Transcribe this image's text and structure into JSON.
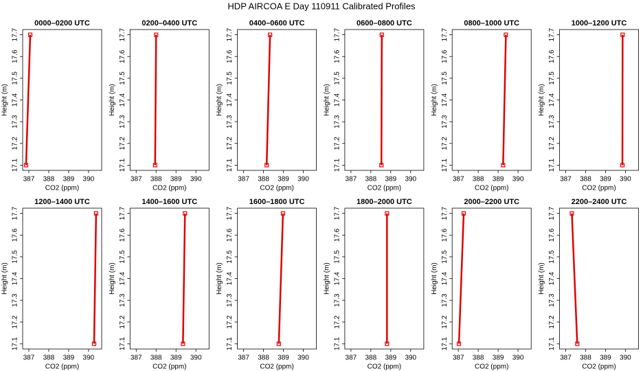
{
  "title": "HDP AIRCOA E  Day 110911  Calibrated Profiles",
  "chart_data": [
    {
      "type": "line",
      "title": "0000–0200 UTC",
      "x_label": "CO2 (ppm)",
      "y_label": "Height (m)",
      "x": [
        386.86,
        387.07
      ],
      "values": [
        17.1,
        17.7
      ],
      "color": "#e00000",
      "xlim": [
        386.69,
        390.66
      ],
      "ylim": [
        17.076,
        17.724
      ],
      "xticks": [
        387,
        388,
        389,
        390
      ],
      "yticks": [
        17.1,
        17.2,
        17.3,
        17.4,
        17.5,
        17.6,
        17.7
      ]
    },
    {
      "type": "line",
      "title": "0200–0400 UTC",
      "x_label": "CO2 (ppm)",
      "y_label": "Height (m)",
      "x": [
        387.95,
        388.0
      ],
      "values": [
        17.1,
        17.7
      ],
      "color": "#e00000",
      "xlim": [
        386.69,
        390.66
      ],
      "ylim": [
        17.076,
        17.724
      ],
      "xticks": [
        387,
        388,
        389,
        390
      ],
      "yticks": [
        17.1,
        17.2,
        17.3,
        17.4,
        17.5,
        17.6,
        17.7
      ]
    },
    {
      "type": "line",
      "title": "0400–0600 UTC",
      "x_label": "CO2 (ppm)",
      "y_label": "Height (m)",
      "x": [
        388.16,
        388.33
      ],
      "values": [
        17.1,
        17.7
      ],
      "color": "#e00000",
      "xlim": [
        386.69,
        390.66
      ],
      "ylim": [
        17.076,
        17.724
      ],
      "xticks": [
        387,
        388,
        389,
        390
      ],
      "yticks": [
        17.1,
        17.2,
        17.3,
        17.4,
        17.5,
        17.6,
        17.7
      ]
    },
    {
      "type": "line",
      "title": "0600–0800 UTC",
      "x_label": "CO2 (ppm)",
      "y_label": "Height (m)",
      "x": [
        388.53,
        388.55
      ],
      "values": [
        17.1,
        17.7
      ],
      "color": "#e00000",
      "xlim": [
        386.69,
        390.66
      ],
      "ylim": [
        17.076,
        17.724
      ],
      "xticks": [
        387,
        388,
        389,
        390
      ],
      "yticks": [
        17.1,
        17.2,
        17.3,
        17.4,
        17.5,
        17.6,
        17.7
      ]
    },
    {
      "type": "line",
      "title": "0800–1000 UTC",
      "x_label": "CO2 (ppm)",
      "y_label": "Height (m)",
      "x": [
        389.25,
        389.39
      ],
      "values": [
        17.1,
        17.7
      ],
      "color": "#e00000",
      "xlim": [
        386.69,
        390.66
      ],
      "ylim": [
        17.076,
        17.724
      ],
      "xticks": [
        387,
        388,
        389,
        390
      ],
      "yticks": [
        17.1,
        17.2,
        17.3,
        17.4,
        17.5,
        17.6,
        17.7
      ]
    },
    {
      "type": "line",
      "title": "1000–1200 UTC",
      "x_label": "CO2 (ppm)",
      "y_label": "Height (m)",
      "x": [
        389.85,
        389.86
      ],
      "values": [
        17.1,
        17.7
      ],
      "color": "#e00000",
      "xlim": [
        386.69,
        390.66
      ],
      "ylim": [
        17.076,
        17.724
      ],
      "xticks": [
        387,
        388,
        389,
        390
      ],
      "yticks": [
        17.1,
        17.2,
        17.3,
        17.4,
        17.5,
        17.6,
        17.7
      ]
    },
    {
      "type": "line",
      "title": "1200–1400 UTC",
      "x_label": "CO2 (ppm)",
      "y_label": "Height (m)",
      "x": [
        390.28,
        390.38
      ],
      "values": [
        17.1,
        17.7
      ],
      "color": "#e00000",
      "xlim": [
        386.69,
        390.66
      ],
      "ylim": [
        17.076,
        17.724
      ],
      "xticks": [
        387,
        388,
        389,
        390
      ],
      "yticks": [
        17.1,
        17.2,
        17.3,
        17.4,
        17.5,
        17.6,
        17.7
      ]
    },
    {
      "type": "line",
      "title": "1400–1600 UTC",
      "x_label": "CO2 (ppm)",
      "y_label": "Height (m)",
      "x": [
        389.35,
        389.45
      ],
      "values": [
        17.1,
        17.7
      ],
      "color": "#e00000",
      "xlim": [
        386.69,
        390.66
      ],
      "ylim": [
        17.076,
        17.724
      ],
      "xticks": [
        387,
        388,
        389,
        390
      ],
      "yticks": [
        17.1,
        17.2,
        17.3,
        17.4,
        17.5,
        17.6,
        17.7
      ]
    },
    {
      "type": "line",
      "title": "1600–1800 UTC",
      "x_label": "CO2 (ppm)",
      "y_label": "Height (m)",
      "x": [
        388.77,
        388.98
      ],
      "values": [
        17.1,
        17.7
      ],
      "color": "#e00000",
      "xlim": [
        386.69,
        390.66
      ],
      "ylim": [
        17.076,
        17.724
      ],
      "xticks": [
        387,
        388,
        389,
        390
      ],
      "yticks": [
        17.1,
        17.2,
        17.3,
        17.4,
        17.5,
        17.6,
        17.7
      ]
    },
    {
      "type": "line",
      "title": "1800–2000 UTC",
      "x_label": "CO2 (ppm)",
      "y_label": "Height (m)",
      "x": [
        388.81,
        388.81
      ],
      "values": [
        17.1,
        17.7
      ],
      "color": "#e00000",
      "xlim": [
        386.69,
        390.66
      ],
      "ylim": [
        17.076,
        17.724
      ],
      "xticks": [
        387,
        388,
        389,
        390
      ],
      "yticks": [
        17.1,
        17.2,
        17.3,
        17.4,
        17.5,
        17.6,
        17.7
      ]
    },
    {
      "type": "line",
      "title": "2000–2200 UTC",
      "x_label": "CO2 (ppm)",
      "y_label": "Height (m)",
      "x": [
        387.03,
        387.27
      ],
      "values": [
        17.1,
        17.7
      ],
      "color": "#e00000",
      "xlim": [
        386.69,
        390.66
      ],
      "ylim": [
        17.076,
        17.724
      ],
      "xticks": [
        387,
        388,
        389,
        390
      ],
      "yticks": [
        17.1,
        17.2,
        17.3,
        17.4,
        17.5,
        17.6,
        17.7
      ]
    },
    {
      "type": "line",
      "title": "2200–2400 UTC",
      "x_label": "CO2 (ppm)",
      "y_label": "Height (m)",
      "x": [
        387.58,
        387.31
      ],
      "values": [
        17.1,
        17.7
      ],
      "color": "#e00000",
      "xlim": [
        386.69,
        390.66
      ],
      "ylim": [
        17.076,
        17.724
      ],
      "xticks": [
        387,
        388,
        389,
        390
      ],
      "yticks": [
        17.1,
        17.2,
        17.3,
        17.4,
        17.5,
        17.6,
        17.7
      ]
    }
  ]
}
